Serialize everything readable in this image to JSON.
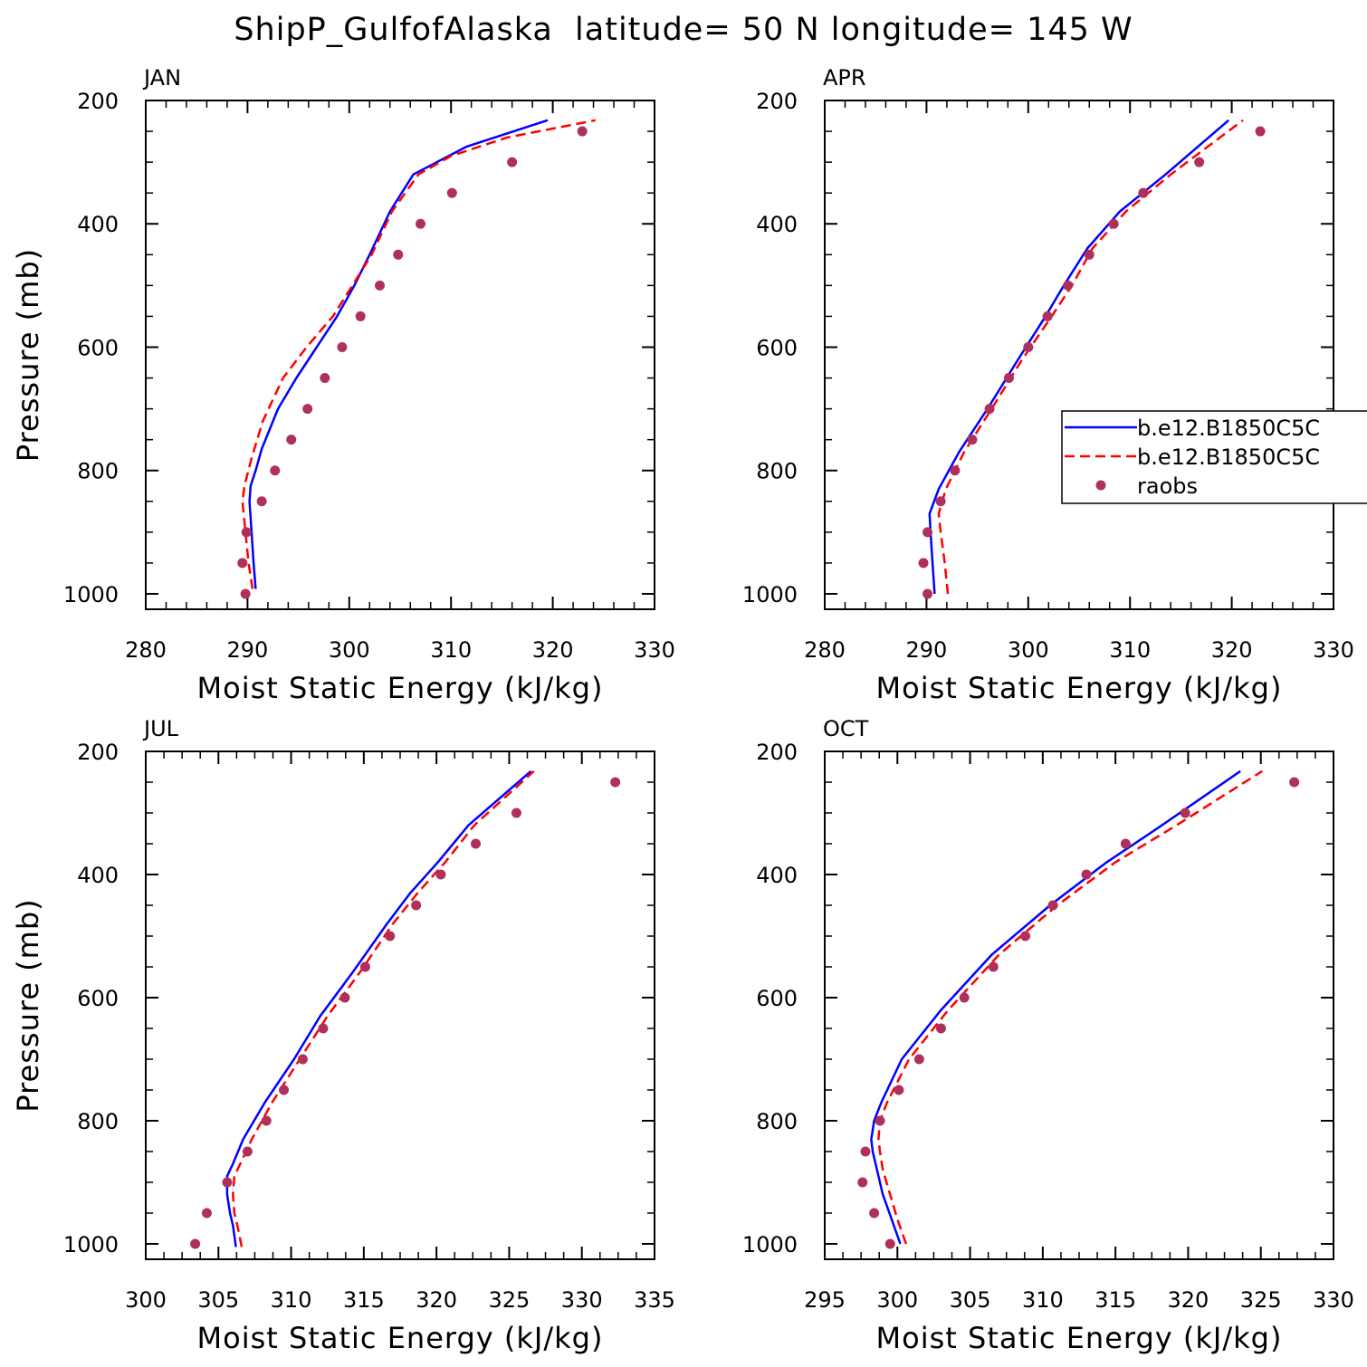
{
  "chart_data": {
    "title": "ShipP_GulfofAlaska  latitude= 50 N longitude= 145 W",
    "type": "line",
    "legend": {
      "placement": "right-middle of APR panel",
      "entries": [
        "b.e12.B1850C5C",
        "b.e12.B1850C5C",
        "raobs"
      ]
    },
    "series_styles": [
      {
        "name": "b.e12.B1850C5C",
        "color": "#0000ff",
        "dash": "solid"
      },
      {
        "name": "b.e12.B1850C5C",
        "color": "#ff0000",
        "dash": "dashed"
      },
      {
        "name": "raobs",
        "color": "#b0305c",
        "dash": "markers"
      }
    ],
    "panels": [
      {
        "label": "JAN",
        "xlabel": "Moist Static Energy (kJ/kg)",
        "ylabel": "Pressure (mb)",
        "xlim": [
          280,
          330
        ],
        "ylim": [
          200,
          1025
        ],
        "xticks": [
          "280",
          "290",
          "300",
          "310",
          "320",
          "330"
        ],
        "yticks": [
          "200",
          "400",
          "600",
          "800",
          "1000"
        ],
        "series": [
          {
            "name": "b.e12.B1850C5C",
            "x": [
              290.8,
              290.6,
              290.4,
              290.2,
              290.3,
              290.8,
              291.4,
              293,
              294.8,
              296.8,
              298.8,
              300.5,
              302,
              304,
              306.3,
              311.5,
              319.5
            ],
            "y": [
              992,
              950,
              900,
              850,
              825,
              800,
              765,
              700,
              650,
              600,
              550,
              500,
              450,
              380,
              320,
              275,
              232
            ]
          },
          {
            "name": "b.e12.B1850C5C",
            "x": [
              290.5,
              290.1,
              289.8,
              289.5,
              289.7,
              290.4,
              291.5,
              293.5,
              295.8,
              298.4,
              300.3,
              302.2,
              304.2,
              306.8,
              310,
              315.5,
              324.2
            ],
            "y": [
              992,
              950,
              900,
              850,
              825,
              780,
              720,
              650,
              600,
              550,
              500,
              450,
              380,
              320,
              290,
              260,
              232
            ]
          },
          {
            "name": "raobs",
            "x": [
              289.8,
              289.5,
              289.9,
              291.4,
              292.7,
              294.3,
              295.9,
              297.6,
              299.3,
              301.1,
              303,
              304.8,
              307,
              310.1,
              316,
              322.9
            ],
            "y": [
              1000,
              950,
              900,
              850,
              800,
              750,
              700,
              650,
              600,
              550,
              500,
              450,
              400,
              350,
              300,
              250
            ]
          }
        ]
      },
      {
        "label": "APR",
        "xlabel": "Moist Static Energy (kJ/kg)",
        "ylabel": "",
        "xlim": [
          280,
          330
        ],
        "ylim": [
          200,
          1025
        ],
        "xticks": [
          "280",
          "290",
          "300",
          "310",
          "320",
          "330"
        ],
        "yticks": [
          "200",
          "400",
          "600",
          "800",
          "1000"
        ],
        "series": [
          {
            "name": "b.e12.B1850C5C",
            "x": [
              290.8,
              290.6,
              290.4,
              290.3,
              291.2,
              293.2,
              296,
              299,
              301.7,
              303.5,
              305.8,
              309,
              313.5,
              319.7
            ],
            "y": [
              1000,
              950,
              900,
              870,
              830,
              770,
              700,
              620,
              550,
              500,
              440,
              380,
              320,
              232
            ]
          },
          {
            "name": "b.e12.B1850C5C",
            "x": [
              292.1,
              291.8,
              291.4,
              291.2,
              291.9,
              293.7,
              296.4,
              299.4,
              302.3,
              304.3,
              306.3,
              309.6,
              314,
              321.1
            ],
            "y": [
              1000,
              950,
              900,
              870,
              830,
              770,
              700,
              620,
              550,
              500,
              440,
              380,
              320,
              232
            ]
          },
          {
            "name": "raobs",
            "x": [
              290.1,
              289.7,
              290.1,
              291.4,
              292.8,
              294.5,
              296.2,
              298.1,
              300,
              301.9,
              303.9,
              306,
              308.4,
              311.3,
              316.8,
              322.8
            ],
            "y": [
              1000,
              950,
              900,
              850,
              800,
              750,
              700,
              650,
              600,
              550,
              500,
              450,
              400,
              350,
              300,
              250
            ]
          }
        ]
      },
      {
        "label": "JUL",
        "xlabel": "Moist Static Energy (kJ/kg)",
        "ylabel": "Pressure (mb)",
        "xlim": [
          300,
          335
        ],
        "ylim": [
          200,
          1025
        ],
        "xticks": [
          "300",
          "305",
          "310",
          "315",
          "320",
          "325",
          "330",
          "335"
        ],
        "yticks": [
          "200",
          "400",
          "600",
          "800",
          "1000"
        ],
        "series": [
          {
            "name": "b.e12.B1850C5C",
            "x": [
              306.2,
              306,
              305.8,
              305.6,
              305.6,
              306,
              306.7,
              308.2,
              310.2,
              312,
              314.2,
              316.6,
              318.2,
              320.1,
              322.2,
              326.5
            ],
            "y": [
              1005,
              970,
              950,
              920,
              890,
              870,
              830,
              770,
              700,
              630,
              560,
              480,
              430,
              380,
              320,
              232
            ]
          },
          {
            "name": "b.e12.B1850C5C",
            "x": [
              306.6,
              306.3,
              306.1,
              306,
              306.1,
              306.5,
              307.3,
              308.7,
              310.6,
              312.5,
              314.7,
              317,
              318.7,
              320.6,
              322.6,
              326.7
            ],
            "y": [
              1005,
              970,
              950,
              920,
              890,
              870,
              830,
              770,
              700,
              630,
              560,
              480,
              430,
              380,
              320,
              232
            ]
          },
          {
            "name": "raobs",
            "x": [
              303.4,
              304.2,
              305.6,
              307,
              308.3,
              309.5,
              310.8,
              312.2,
              313.7,
              315.1,
              316.8,
              318.6,
              320.3,
              322.7,
              325.5,
              332.3
            ],
            "y": [
              1000,
              950,
              900,
              850,
              800,
              750,
              700,
              650,
              600,
              550,
              500,
              450,
              400,
              350,
              300,
              250
            ]
          }
        ]
      },
      {
        "label": "OCT",
        "xlabel": "Moist Static Energy (kJ/kg)",
        "ylabel": "",
        "xlim": [
          295,
          330
        ],
        "ylim": [
          200,
          1025
        ],
        "xticks": [
          "295",
          "300",
          "305",
          "310",
          "315",
          "320",
          "325",
          "330"
        ],
        "yticks": [
          "200",
          "400",
          "600",
          "800",
          "1000"
        ],
        "series": [
          {
            "name": "b.e12.B1850C5C",
            "x": [
              300.2,
              299.6,
              299,
              298.6,
              298.3,
              298.2,
              298.4,
              298.9,
              300.3,
              303,
              306.5,
              310.5,
              314.4,
              318.2,
              323.6
            ],
            "y": [
              1000,
              960,
              920,
              880,
              850,
              830,
              800,
              770,
              700,
              620,
              530,
              450,
              380,
              320,
              232
            ]
          },
          {
            "name": "b.e12.B1850C5C",
            "x": [
              300.6,
              300,
              299.5,
              299,
              298.8,
              298.7,
              298.8,
              299.3,
              300.8,
              303.5,
              307,
              311,
              315,
              319.2,
              325.1
            ],
            "y": [
              1000,
              960,
              920,
              880,
              850,
              830,
              800,
              770,
              700,
              620,
              530,
              450,
              380,
              320,
              232
            ]
          },
          {
            "name": "raobs",
            "x": [
              299.5,
              298.4,
              297.6,
              297.8,
              298.8,
              300.1,
              301.5,
              303,
              304.6,
              306.6,
              308.8,
              310.7,
              313,
              315.7,
              319.8,
              327.3
            ],
            "y": [
              1000,
              950,
              900,
              850,
              800,
              750,
              700,
              650,
              600,
              550,
              500,
              450,
              400,
              350,
              300,
              250
            ]
          }
        ]
      }
    ]
  }
}
